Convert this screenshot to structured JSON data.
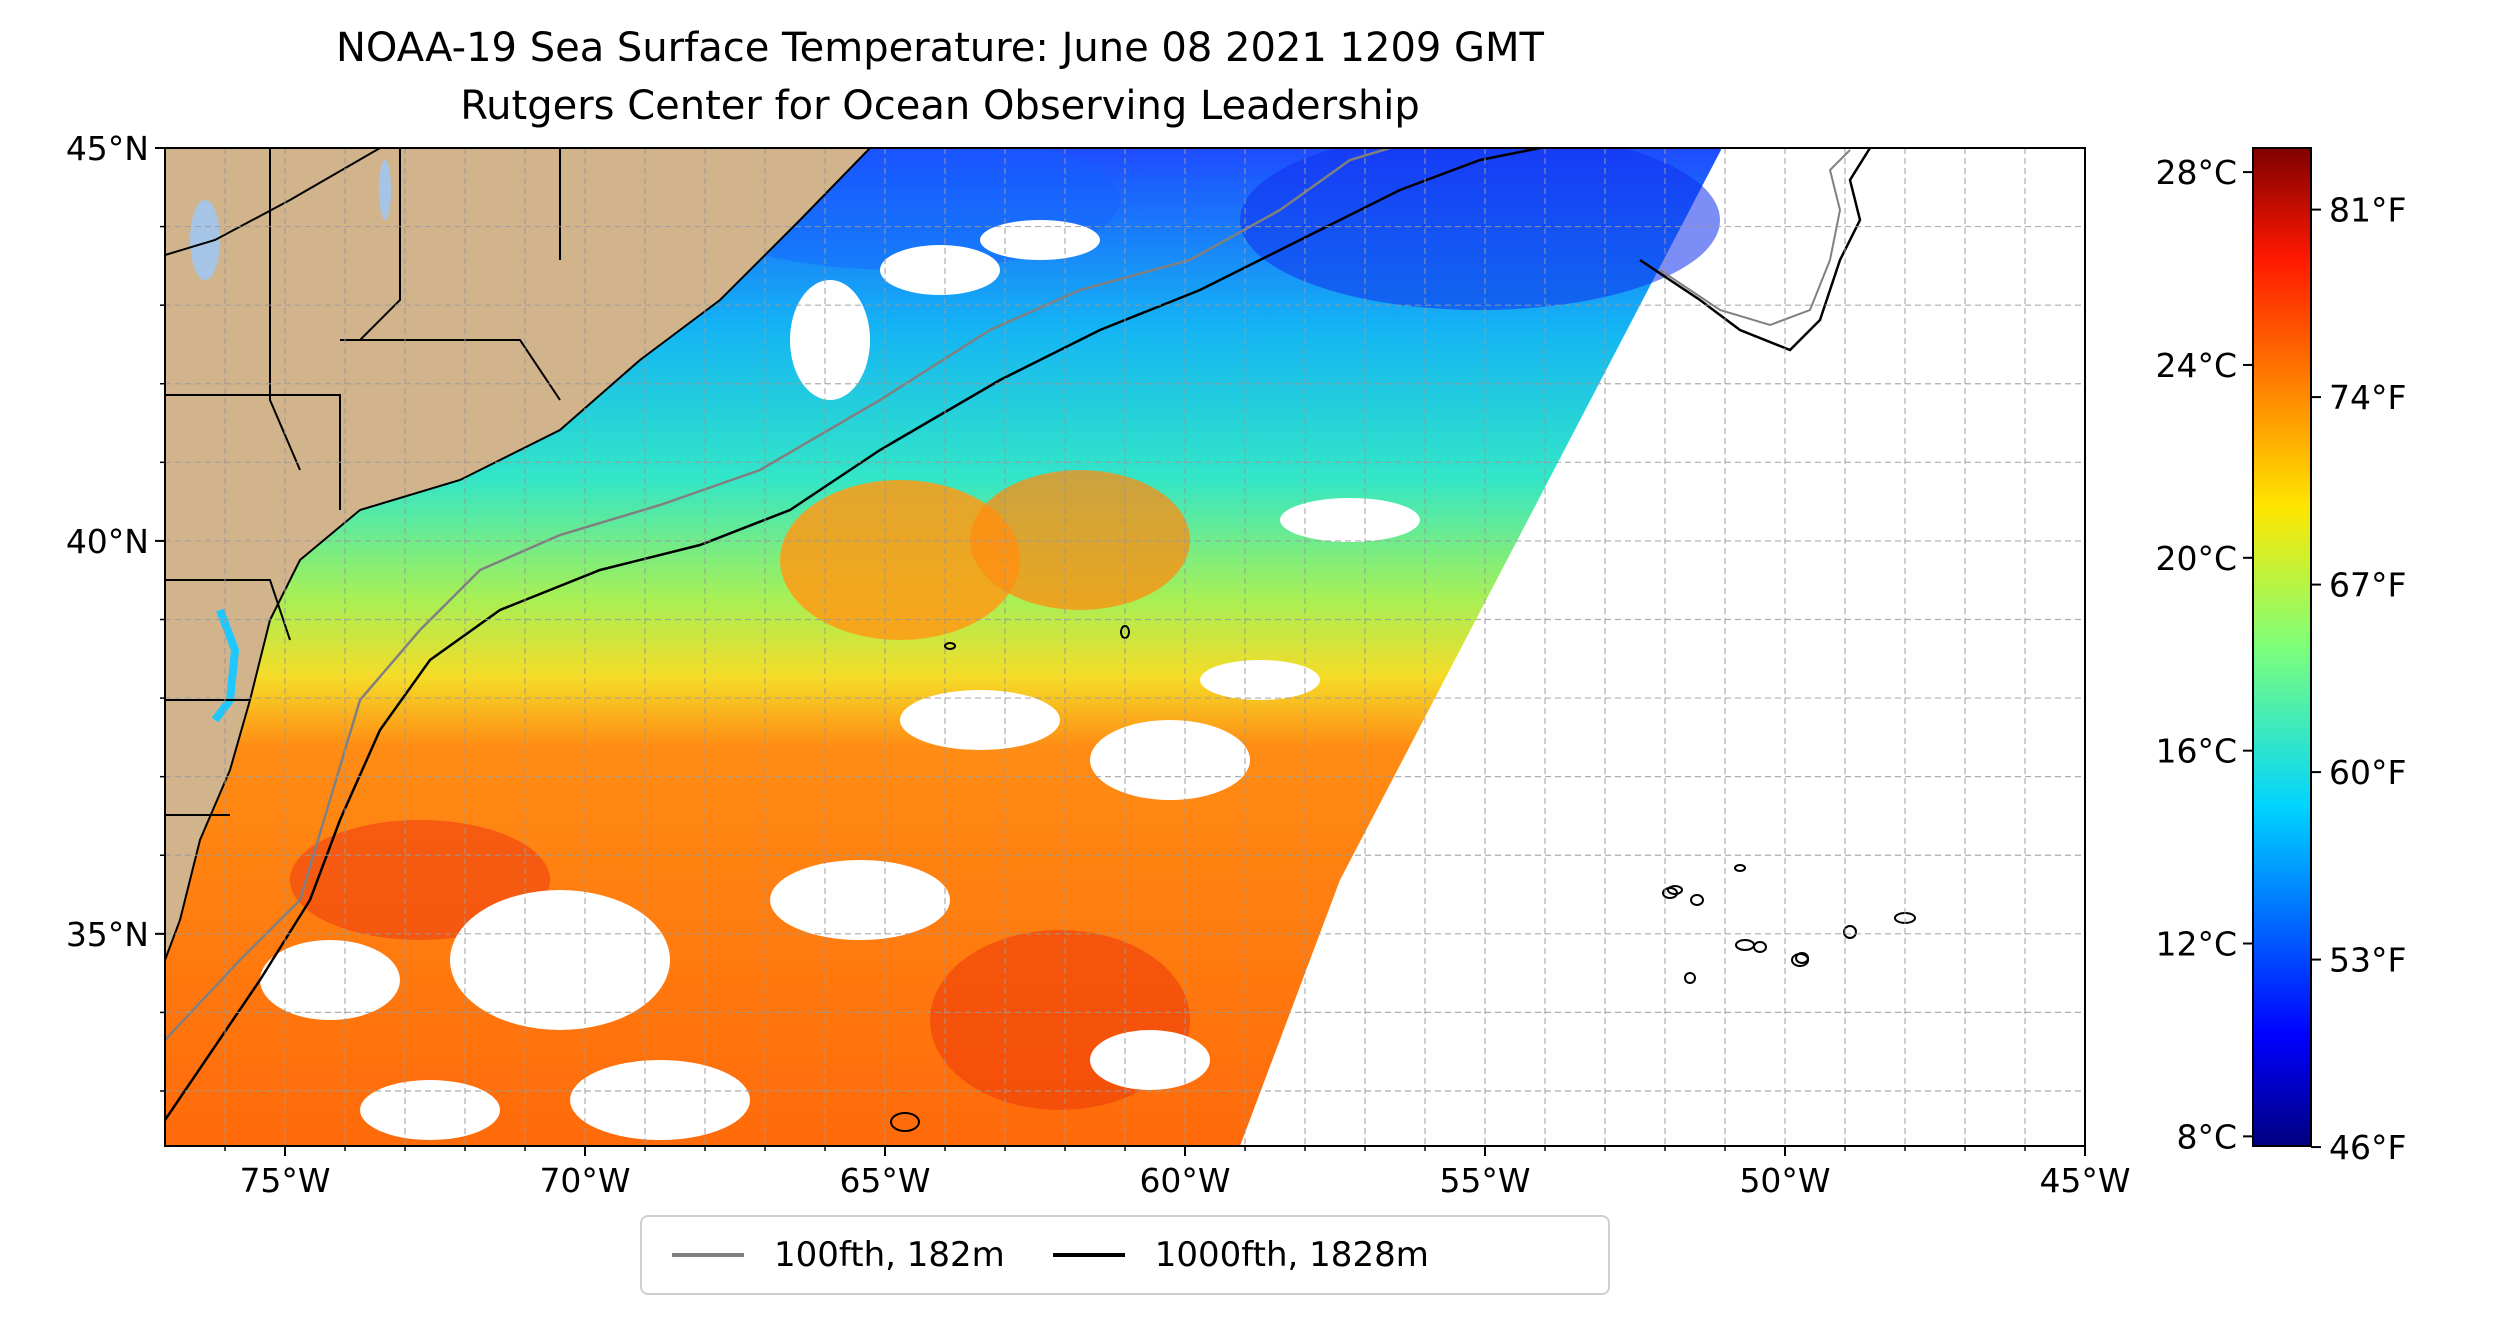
{
  "title": "NOAA-19 Sea Surface Temperature: June 08 2021 1209 GMT",
  "subtitle": "Rutgers Center for Ocean Observing Leadership",
  "map": {
    "lon_ticks": [
      "75°W",
      "70°W",
      "65°W",
      "60°W",
      "55°W",
      "50°W",
      "45°W"
    ],
    "lat_ticks": [
      "45°N",
      "40°N",
      "35°N"
    ],
    "grid": true,
    "extent": {
      "lon": [
        -77,
        -45
      ],
      "lat": [
        32.3,
        45
      ]
    },
    "colors": {
      "land": "#d2b48c",
      "lakes": "#a6c4e6",
      "missing": "#ffffff"
    }
  },
  "colorbar": {
    "celsius_ticks": [
      "28°C",
      "24°C",
      "20°C",
      "16°C",
      "12°C",
      "8°C"
    ],
    "fahrenheit_ticks": [
      "81°F",
      "74°F",
      "67°F",
      "60°F",
      "53°F",
      "46°F"
    ],
    "colormap": "jet",
    "range_celsius": [
      7.8,
      28.5
    ]
  },
  "legend": {
    "items": [
      {
        "label": "100fth, 182m",
        "color": "#808080"
      },
      {
        "label": "1000fth, 1828m",
        "color": "#000000"
      }
    ]
  }
}
